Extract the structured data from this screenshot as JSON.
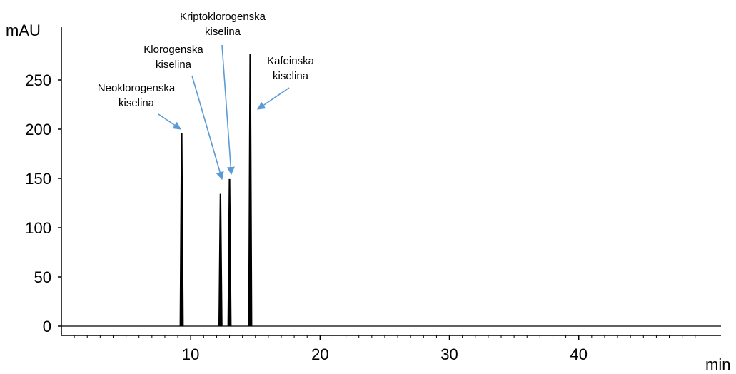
{
  "chart_data": {
    "type": "line",
    "ylabel": "mAU",
    "xlabel": "min",
    "xlim": [
      0,
      51
    ],
    "ylim": [
      -8,
      300
    ],
    "x_ticks": [
      10,
      20,
      30,
      40
    ],
    "y_ticks": [
      0,
      50,
      100,
      150,
      200,
      250
    ],
    "grid": false,
    "colors": {
      "trace": "#000000",
      "arrow": "#5b9bd5",
      "axis": "#000000"
    },
    "peaks": [
      {
        "x": 9.3,
        "y": 196
      },
      {
        "x": 12.3,
        "y": 134
      },
      {
        "x": 13.0,
        "y": 149
      },
      {
        "x": 14.6,
        "y": 276
      }
    ],
    "annotations": [
      {
        "lines": [
          "Neoklorogenska",
          "kiselina"
        ],
        "x": 9.3,
        "y": 196
      },
      {
        "lines": [
          "Klorogenska",
          "kiselina"
        ],
        "x": 12.3,
        "y": 146
      },
      {
        "lines": [
          "Kriptoklorogenska",
          "kiselina"
        ],
        "x": 13.0,
        "y": 162
      },
      {
        "lines": [
          "Kafeinska",
          "kiselina"
        ],
        "x": 14.9,
        "y": 220
      }
    ]
  }
}
